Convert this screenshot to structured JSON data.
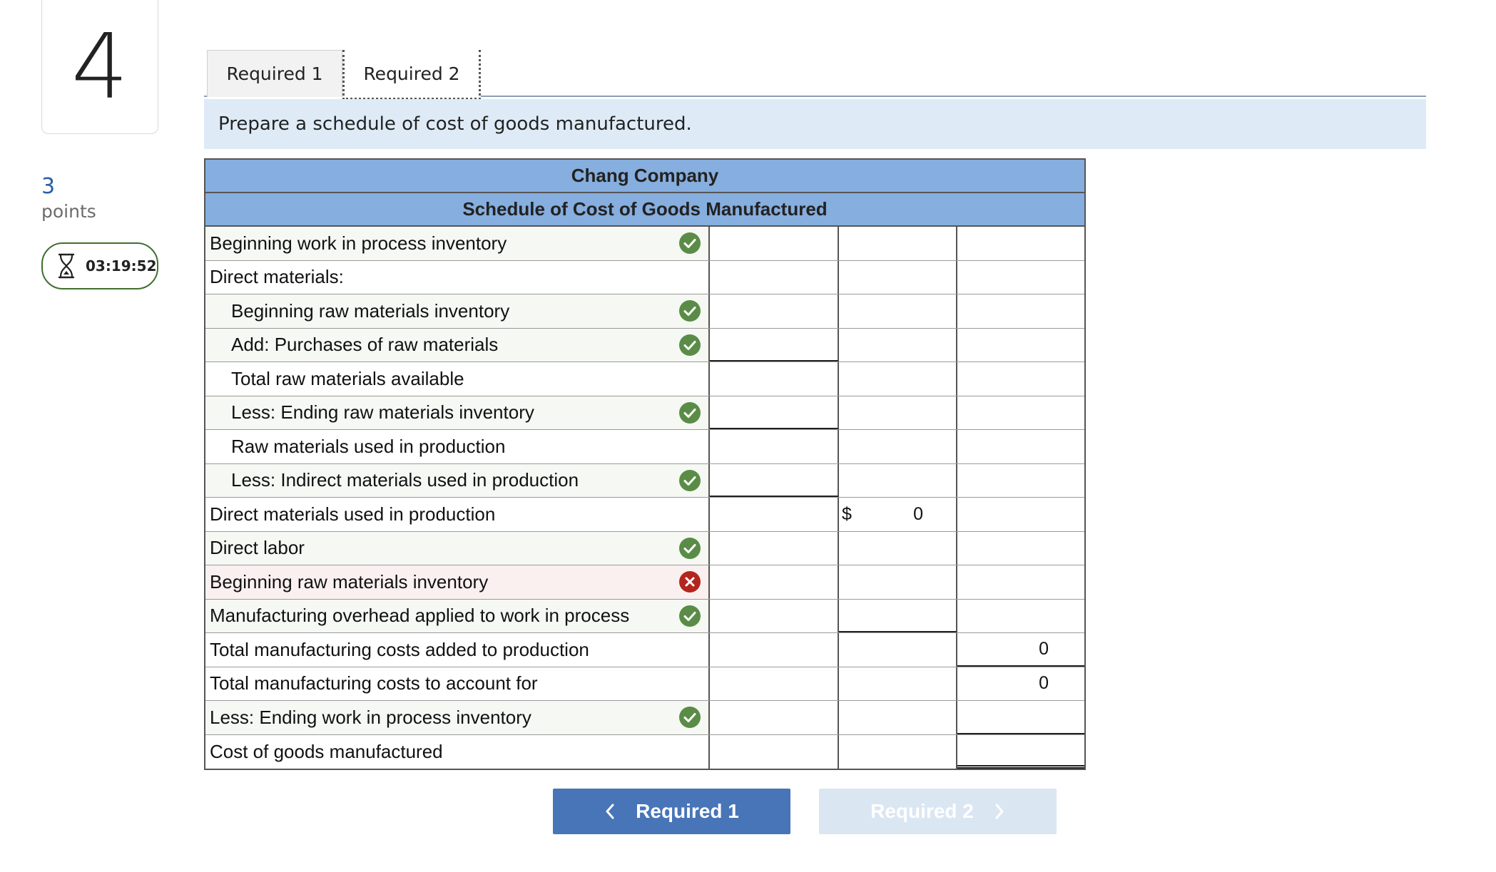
{
  "question": {
    "number": "4",
    "points_value": "3",
    "points_label": "points",
    "timer": "03:19:52"
  },
  "tabs": [
    {
      "label": "Required 1",
      "active": false
    },
    {
      "label": "Required 2",
      "active": true
    }
  ],
  "instruction": "Prepare a schedule of cost of goods manufactured.",
  "schedule": {
    "company": "Chang Company",
    "title": "Schedule of Cost of Goods Manufactured",
    "rows": [
      {
        "label": "Beginning work in process inventory",
        "status": "correct",
        "col1": "",
        "col2_prefix": "",
        "col2": "",
        "col3": ""
      },
      {
        "label": "Direct materials:",
        "status": "",
        "col1": "",
        "col2_prefix": "",
        "col2": "",
        "col3": ""
      },
      {
        "label": "Beginning raw materials inventory",
        "status": "correct",
        "col1": "",
        "col2_prefix": "",
        "col2": "",
        "col3": ""
      },
      {
        "label": "Add: Purchases of raw materials",
        "status": "correct",
        "col1": "",
        "col2_prefix": "",
        "col2": "",
        "col3": ""
      },
      {
        "label": "Total raw materials available",
        "status": "",
        "col1": "",
        "col2_prefix": "",
        "col2": "",
        "col3": ""
      },
      {
        "label": "Less: Ending raw materials inventory",
        "status": "correct",
        "col1": "",
        "col2_prefix": "",
        "col2": "",
        "col3": ""
      },
      {
        "label": "Raw materials used in production",
        "status": "",
        "col1": "",
        "col2_prefix": "",
        "col2": "",
        "col3": ""
      },
      {
        "label": "Less: Indirect materials used in production",
        "status": "correct",
        "col1": "",
        "col2_prefix": "",
        "col2": "",
        "col3": ""
      },
      {
        "label": "Direct materials used in production",
        "status": "",
        "col1": "",
        "col2_prefix": "$",
        "col2": "0",
        "col3": ""
      },
      {
        "label": "Direct labor",
        "status": "correct",
        "col1": "",
        "col2_prefix": "",
        "col2": "",
        "col3": ""
      },
      {
        "label": "Beginning raw materials inventory",
        "status": "incorrect",
        "col1": "",
        "col2_prefix": "",
        "col2": "",
        "col3": ""
      },
      {
        "label": "Manufacturing overhead applied to work in process",
        "status": "correct",
        "col1": "",
        "col2_prefix": "",
        "col2": "",
        "col3": ""
      },
      {
        "label": "Total manufacturing costs added to production",
        "status": "",
        "col1": "",
        "col2_prefix": "",
        "col2": "",
        "col3": "0"
      },
      {
        "label": "Total manufacturing costs to account for",
        "status": "",
        "col1": "",
        "col2_prefix": "",
        "col2": "",
        "col3": "0"
      },
      {
        "label": "Less: Ending work in process inventory",
        "status": "correct",
        "col1": "",
        "col2_prefix": "",
        "col2": "",
        "col3": ""
      },
      {
        "label": "Cost of goods manufactured",
        "status": "",
        "col1": "",
        "col2_prefix": "",
        "col2": "",
        "col3": ""
      }
    ]
  },
  "nav": {
    "prev_label": "Required 1",
    "next_label": "Required 2"
  },
  "colors": {
    "header_blue": "#86aede",
    "instruction_bg": "#deebf7",
    "correct_green": "#5b8c47",
    "incorrect_red": "#b3261e",
    "prev_button": "#4775b8",
    "next_button_disabled": "#dbe6f3"
  }
}
